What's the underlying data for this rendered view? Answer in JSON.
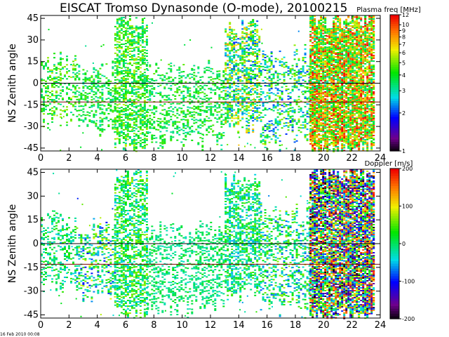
{
  "title": "EISCAT Tromso Dynasonde (O-mode),  20100215",
  "timestamp": "16 Feb 2010 00:08",
  "chart_data": [
    {
      "type": "heatmap",
      "name": "plasma-frequency-panel",
      "ylabel": "NS Zenith angle",
      "xlim": [
        0,
        24
      ],
      "ylim": [
        -47,
        47
      ],
      "x_ticks": [
        "0",
        "2",
        "4",
        "6",
        "8",
        "10",
        "12",
        "14",
        "16",
        "18",
        "20",
        "22",
        "24"
      ],
      "y_ticks": [
        "45",
        "30",
        "15",
        "0",
        "-15",
        "-30",
        "-45"
      ],
      "reference_lines": [
        0,
        -13
      ],
      "colorbar": {
        "title": "Plasma freq [MHz]",
        "scale": "log",
        "range": [
          1,
          12
        ],
        "ticks": [
          "12",
          "10",
          "9",
          "8",
          "7",
          "6",
          "5",
          "4",
          "3",
          "2",
          "1"
        ]
      },
      "activity": [
        {
          "t0": 0,
          "t1": 2.5,
          "z_lo": -25,
          "z_hi": 15,
          "value_range": [
            3,
            6
          ],
          "level": "moderate"
        },
        {
          "t0": 2.5,
          "t1": 5.2,
          "z_lo": -30,
          "z_hi": 10,
          "value_range": [
            3,
            5
          ],
          "level": "moderate"
        },
        {
          "t0": 5.2,
          "t1": 7.5,
          "z_lo": -45,
          "z_hi": 45,
          "value_range": [
            3,
            6
          ],
          "level": "high"
        },
        {
          "t0": 7.5,
          "t1": 13,
          "z_lo": -40,
          "z_hi": 10,
          "value_range": [
            3,
            5
          ],
          "level": "moderate"
        },
        {
          "t0": 13,
          "t1": 15.5,
          "z_lo": -30,
          "z_hi": 40,
          "value_range": [
            2,
            8
          ],
          "level": "high"
        },
        {
          "t0": 15.5,
          "t1": 19,
          "z_lo": -40,
          "z_hi": 20,
          "value_range": [
            2,
            6
          ],
          "level": "moderate"
        },
        {
          "t0": 19,
          "t1": 23.5,
          "z_lo": -45,
          "z_hi": 45,
          "value_range": [
            3,
            12
          ],
          "level": "very-high"
        }
      ]
    },
    {
      "type": "heatmap",
      "name": "doppler-panel",
      "ylabel": "NS Zenith angle",
      "xlim": [
        0,
        24
      ],
      "ylim": [
        -47,
        47
      ],
      "x_ticks": [
        "0",
        "2",
        "4",
        "6",
        "8",
        "10",
        "12",
        "14",
        "16",
        "18",
        "20",
        "22",
        "24"
      ],
      "y_ticks": [
        "45",
        "30",
        "15",
        "0",
        "-15",
        "-30",
        "-45"
      ],
      "reference_lines": [
        0,
        -13
      ],
      "colorbar": {
        "title": "Doppler [m/s]",
        "scale": "linear",
        "range": [
          -200,
          200
        ],
        "ticks": [
          "200",
          "100",
          "0",
          "-100",
          "-200"
        ]
      },
      "activity": [
        {
          "t0": 0,
          "t1": 2.5,
          "z_lo": -25,
          "z_hi": 15,
          "value_range": [
            -50,
            50
          ],
          "level": "moderate"
        },
        {
          "t0": 2.5,
          "t1": 5.2,
          "z_lo": -30,
          "z_hi": 10,
          "value_range": [
            -100,
            100
          ],
          "level": "moderate"
        },
        {
          "t0": 5.2,
          "t1": 7.5,
          "z_lo": -45,
          "z_hi": 45,
          "value_range": [
            -50,
            80
          ],
          "level": "high"
        },
        {
          "t0": 7.5,
          "t1": 13,
          "z_lo": -40,
          "z_hi": 10,
          "value_range": [
            -30,
            30
          ],
          "level": "moderate"
        },
        {
          "t0": 13,
          "t1": 15.5,
          "z_lo": -30,
          "z_hi": 40,
          "value_range": [
            -60,
            60
          ],
          "level": "high"
        },
        {
          "t0": 15.5,
          "t1": 19,
          "z_lo": -40,
          "z_hi": 20,
          "value_range": [
            -80,
            80
          ],
          "level": "moderate"
        },
        {
          "t0": 19,
          "t1": 23.5,
          "z_lo": -45,
          "z_hi": 45,
          "value_range": [
            -200,
            200
          ],
          "level": "very-high"
        }
      ]
    }
  ]
}
